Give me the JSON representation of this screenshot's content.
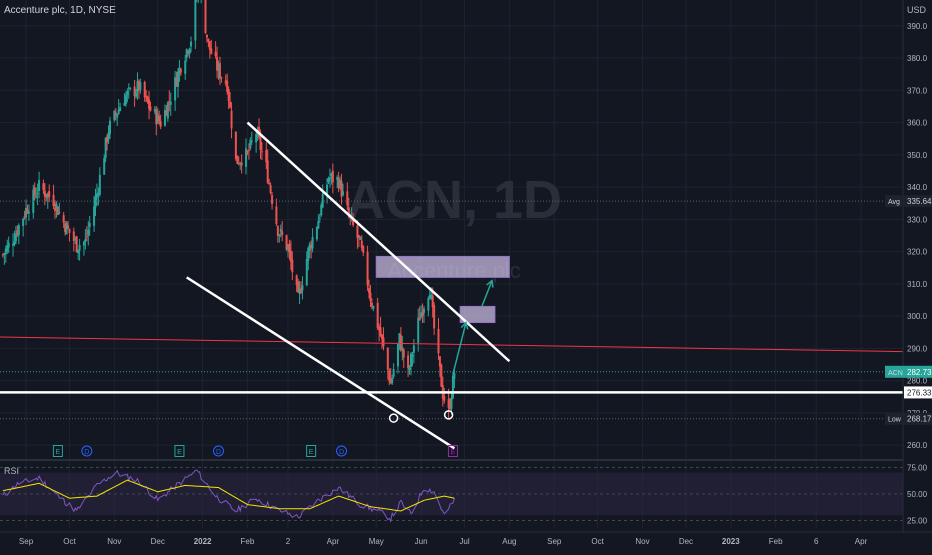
{
  "header": {
    "symbol_name": "Accenture plc",
    "timeframe": "1D",
    "exchange": "NYSE"
  },
  "currency": "USD",
  "watermark": {
    "ticker": "ACN, 1D",
    "name": "Accenture plc"
  },
  "rsi_label": "RSI",
  "price_labels": {
    "avg_tag": "Avg",
    "avg_value": "335.64",
    "ticker_tag": "ACN",
    "last_value": "282.73",
    "line_value": "276.33",
    "low_tag": "Low",
    "low_value": "268.17"
  },
  "event_markers": [
    {
      "letter": "E",
      "date": "2021-09-23",
      "color": "#26a69a"
    },
    {
      "letter": "D",
      "date": "2021-10-13",
      "color": "#2962ff"
    },
    {
      "letter": "E",
      "date": "2021-12-16",
      "color": "#26a69a"
    },
    {
      "letter": "D",
      "date": "2022-01-12",
      "color": "#2962ff"
    },
    {
      "letter": "E",
      "date": "2022-03-17",
      "color": "#26a69a"
    },
    {
      "letter": "D",
      "date": "2022-04-07",
      "color": "#2962ff"
    },
    {
      "letter": "E",
      "date": "2022-06-23",
      "color": "#9c27b0"
    }
  ],
  "colors": {
    "background": "#131722",
    "up": "#26a69a",
    "down": "#ef5350",
    "grid": "#1f2330",
    "axis_text": "#b2b5be",
    "drawing": "#ffffff",
    "trend_red": "#f23645",
    "rsi_line": "#7e57c2",
    "rsi_ma": "#f7e600",
    "rsi_band": "#2a2440",
    "zone": "#d1c4e9",
    "arrow": "#26a69a"
  },
  "chart_data": {
    "type": "candlestick",
    "price_axis": {
      "ticks": [
        260,
        270,
        280,
        290,
        300,
        310,
        320,
        330,
        340,
        350,
        360,
        370,
        380,
        390
      ],
      "range": [
        256,
        398
      ]
    },
    "time_axis": {
      "range": [
        "2021-08-14",
        "2023-04-30"
      ],
      "ticks": [
        {
          "label": "Sep",
          "date": "2021-09-01"
        },
        {
          "label": "Oct",
          "date": "2021-10-01"
        },
        {
          "label": "Nov",
          "date": "2021-11-01"
        },
        {
          "label": "Dec",
          "date": "2021-12-01"
        },
        {
          "label": "2022",
          "date": "2022-01-01"
        },
        {
          "label": "Feb",
          "date": "2022-02-01"
        },
        {
          "label": "2",
          "date": "2022-03-01"
        },
        {
          "label": "Apr",
          "date": "2022-04-01"
        },
        {
          "label": "May",
          "date": "2022-05-01"
        },
        {
          "label": "Jun",
          "date": "2022-06-01"
        },
        {
          "label": "Jul",
          "date": "2022-07-01"
        },
        {
          "label": "Aug",
          "date": "2022-08-01"
        },
        {
          "label": "Sep",
          "date": "2022-09-01"
        },
        {
          "label": "Oct",
          "date": "2022-10-01"
        },
        {
          "label": "Nov",
          "date": "2022-11-01"
        },
        {
          "label": "Dec",
          "date": "2022-12-01"
        },
        {
          "label": "2023",
          "date": "2023-01-01"
        },
        {
          "label": "Feb",
          "date": "2023-02-01"
        },
        {
          "label": "6",
          "date": "2023-03-01"
        },
        {
          "label": "Apr",
          "date": "2023-04-01"
        }
      ]
    },
    "price_path": [
      [
        "2021-08-16",
        319
      ],
      [
        "2021-08-23",
        324
      ],
      [
        "2021-09-01",
        333
      ],
      [
        "2021-09-10",
        340
      ],
      [
        "2021-09-20",
        336
      ],
      [
        "2021-09-27",
        329
      ],
      [
        "2021-10-06",
        322
      ],
      [
        "2021-10-12",
        323
      ],
      [
        "2021-10-20",
        338
      ],
      [
        "2021-10-28",
        358
      ],
      [
        "2021-11-08",
        368
      ],
      [
        "2021-11-18",
        371
      ],
      [
        "2021-11-26",
        364
      ],
      [
        "2021-12-03",
        360
      ],
      [
        "2021-12-10",
        368
      ],
      [
        "2021-12-17",
        378
      ],
      [
        "2021-12-24",
        386
      ],
      [
        "2021-12-29",
        404
      ],
      [
        "2022-01-05",
        384
      ],
      [
        "2022-01-12",
        376
      ],
      [
        "2022-01-18",
        372
      ],
      [
        "2022-01-24",
        348
      ],
      [
        "2022-02-01",
        350
      ],
      [
        "2022-02-07",
        357
      ],
      [
        "2022-02-14",
        346
      ],
      [
        "2022-02-22",
        327
      ],
      [
        "2022-03-01",
        321
      ],
      [
        "2022-03-08",
        305
      ],
      [
        "2022-03-15",
        320
      ],
      [
        "2022-03-22",
        330
      ],
      [
        "2022-03-29",
        343
      ],
      [
        "2022-04-05",
        342
      ],
      [
        "2022-04-12",
        331
      ],
      [
        "2022-04-20",
        322
      ],
      [
        "2022-04-27",
        306
      ],
      [
        "2022-05-04",
        294
      ],
      [
        "2022-05-11",
        279
      ],
      [
        "2022-05-17",
        293
      ],
      [
        "2022-05-23",
        282
      ],
      [
        "2022-05-31",
        300
      ],
      [
        "2022-06-07",
        309
      ],
      [
        "2022-06-10",
        296
      ],
      [
        "2022-06-16",
        276
      ],
      [
        "2022-06-20",
        270
      ],
      [
        "2022-06-24",
        282.73
      ]
    ],
    "rsi": {
      "levels": [
        25,
        50,
        75
      ],
      "band": [
        30,
        70
      ],
      "range": [
        18,
        80
      ],
      "values": [
        [
          "2021-08-16",
          48
        ],
        [
          "2021-08-27",
          60
        ],
        [
          "2021-09-10",
          65
        ],
        [
          "2021-09-24",
          47
        ],
        [
          "2021-10-06",
          34
        ],
        [
          "2021-10-20",
          58
        ],
        [
          "2021-11-02",
          70
        ],
        [
          "2021-11-18",
          62
        ],
        [
          "2021-12-01",
          44
        ],
        [
          "2021-12-14",
          58
        ],
        [
          "2021-12-28",
          72
        ],
        [
          "2022-01-10",
          48
        ],
        [
          "2022-01-24",
          34
        ],
        [
          "2022-02-07",
          46
        ],
        [
          "2022-02-22",
          35
        ],
        [
          "2022-03-08",
          28
        ],
        [
          "2022-03-22",
          44
        ],
        [
          "2022-04-05",
          56
        ],
        [
          "2022-04-20",
          40
        ],
        [
          "2022-05-04",
          33
        ],
        [
          "2022-05-11",
          27
        ],
        [
          "2022-05-18",
          42
        ],
        [
          "2022-05-25",
          31
        ],
        [
          "2022-06-03",
          56
        ],
        [
          "2022-06-10",
          52
        ],
        [
          "2022-06-17",
          30
        ],
        [
          "2022-06-24",
          44
        ]
      ],
      "ma": [
        [
          "2021-08-16",
          53
        ],
        [
          "2021-09-10",
          60
        ],
        [
          "2021-10-01",
          46
        ],
        [
          "2021-10-20",
          48
        ],
        [
          "2021-11-10",
          63
        ],
        [
          "2021-12-01",
          52
        ],
        [
          "2021-12-20",
          58
        ],
        [
          "2022-01-12",
          56
        ],
        [
          "2022-02-01",
          40
        ],
        [
          "2022-02-24",
          36
        ],
        [
          "2022-03-16",
          36
        ],
        [
          "2022-04-05",
          48
        ],
        [
          "2022-04-27",
          38
        ],
        [
          "2022-05-18",
          34
        ],
        [
          "2022-06-03",
          44
        ],
        [
          "2022-06-17",
          48
        ],
        [
          "2022-06-24",
          46
        ]
      ]
    },
    "drawings": {
      "avg_line": 335.64,
      "horizontal_line": 276.33,
      "low_line": 268.17,
      "trendline_upper": [
        [
          "2022-02-01",
          360
        ],
        [
          "2022-08-01",
          286
        ]
      ],
      "trendline_lower": [
        [
          "2021-12-21",
          312
        ],
        [
          "2022-06-24",
          259
        ]
      ],
      "trendline_red": [
        [
          "2021-08-14",
          293.5
        ],
        [
          "2023-04-30",
          289
        ]
      ],
      "zones": [
        {
          "from": "2022-05-01",
          "to": "2022-08-01",
          "low": 312,
          "high": 318.5
        },
        {
          "from": "2022-06-28",
          "to": "2022-07-22",
          "low": 298,
          "high": 303
        }
      ],
      "arrows": [
        [
          [
            "2022-06-23",
            282
          ],
          [
            "2022-07-02",
            298
          ]
        ],
        [
          [
            "2022-07-13",
            303
          ],
          [
            "2022-07-20",
            311
          ]
        ]
      ],
      "circles": [
        [
          "2022-05-13",
          269
        ],
        [
          "2022-06-20",
          270
        ]
      ]
    }
  }
}
